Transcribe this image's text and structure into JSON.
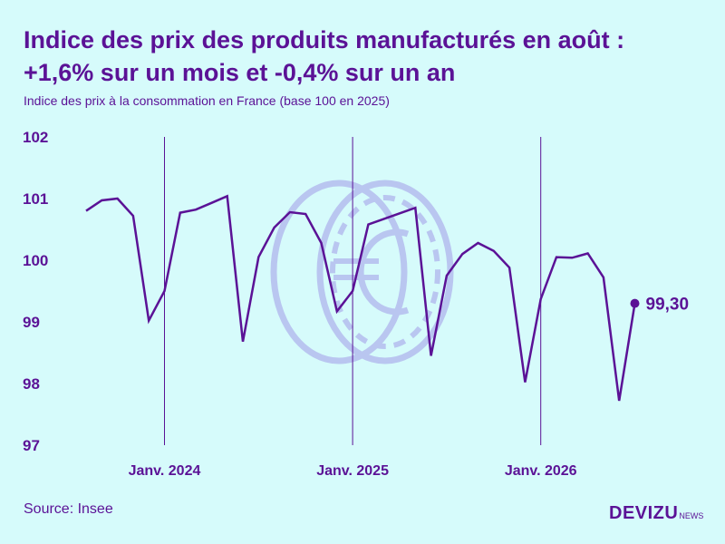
{
  "header": {
    "title_line1": "Indice des prix des produits manufacturés en août :",
    "title_line2": "+1,6% sur un mois et -0,4% sur un an",
    "subtitle": "Indice des prix à la consommation en France (base 100 en 2025)"
  },
  "footer": {
    "source": "Source: Insee",
    "brand": "DEVIZU",
    "brand_suffix": "NEWS"
  },
  "colors": {
    "line": "#5b1296",
    "background": "#d6fbfb",
    "watermark": "#b9c6f0"
  },
  "watermark_icon": "euro-coin-icon",
  "chart_data": {
    "type": "line",
    "title": "Indice des prix des produits manufacturés en août : +1,6% sur un mois et -0,4% sur un an",
    "subtitle": "Indice des prix à la consommation en France (base 100 en 2025)",
    "ylim": [
      97,
      102
    ],
    "y_ticks": [
      97,
      98,
      99,
      100,
      101,
      102
    ],
    "y_tick_labels": [
      "97",
      "98",
      "99",
      "100",
      "101",
      "102"
    ],
    "x_tick_labels": [
      "Janv. 2024",
      "Janv. 2025",
      "Janv. 2026"
    ],
    "x_tick_dates": [
      "2024-01",
      "2025-01",
      "2026-01"
    ],
    "grid": "vertical lines at year starts",
    "x": [
      "2023-08",
      "2023-09",
      "2023-10",
      "2023-11",
      "2023-12",
      "2024-01",
      "2024-02",
      "2024-03",
      "2024-04",
      "2024-05",
      "2024-06",
      "2024-07",
      "2024-08",
      "2024-09",
      "2024-10",
      "2024-11",
      "2024-12",
      "2025-01",
      "2025-02",
      "2025-03",
      "2025-04",
      "2025-05",
      "2025-06",
      "2025-07",
      "2025-08",
      "2025-09",
      "2025-10",
      "2025-11",
      "2025-12",
      "2026-01",
      "2026-02",
      "2026-03",
      "2026-04",
      "2026-05",
      "2026-06",
      "2026-07",
      "2026-08"
    ],
    "values": [
      100.8,
      100.97,
      101.0,
      100.72,
      99.02,
      99.5,
      100.77,
      100.82,
      100.93,
      101.04,
      98.68,
      100.05,
      100.53,
      100.78,
      100.75,
      100.28,
      99.17,
      99.5,
      100.58,
      100.67,
      100.76,
      100.85,
      98.45,
      99.75,
      100.1,
      100.28,
      100.15,
      99.88,
      98.02,
      99.37,
      100.05,
      100.04,
      100.11,
      99.72,
      97.72,
      99.3,
      null
    ],
    "last_value_label": "99,30"
  }
}
